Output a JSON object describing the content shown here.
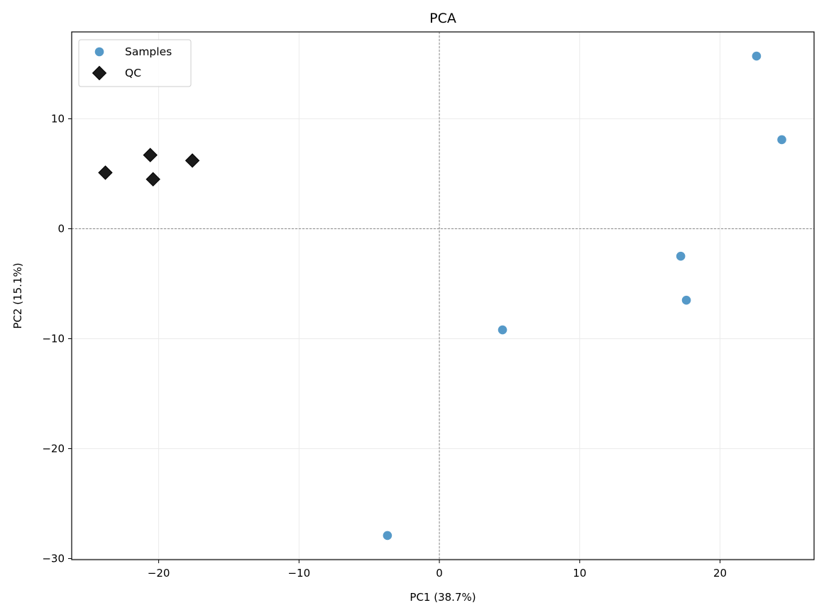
{
  "chart_data": {
    "type": "scatter",
    "title": "PCA",
    "xlabel": "PC1 (38.7%)",
    "ylabel": "PC2 (15.1%)",
    "xlim": [
      -26.2,
      26.7
    ],
    "ylim": [
      -30.1,
      17.9
    ],
    "xticks": [
      -20,
      -10,
      0,
      10,
      20
    ],
    "yticks": [
      -30,
      -20,
      -10,
      0,
      10
    ],
    "xtick_labels": [
      "−20",
      "−10",
      "0",
      "10",
      "20"
    ],
    "ytick_labels": [
      "−30",
      "−20",
      "−10",
      "0",
      "10"
    ],
    "grid": true,
    "zero_lines": true,
    "legend_position": "upper-left",
    "series": [
      {
        "name": "Samples",
        "marker": "circle",
        "color": "#5599c8",
        "points": [
          {
            "x": 22.6,
            "y": 15.7
          },
          {
            "x": 24.4,
            "y": 8.1
          },
          {
            "x": 17.2,
            "y": -2.5
          },
          {
            "x": 17.6,
            "y": -6.5
          },
          {
            "x": 4.5,
            "y": -9.2
          },
          {
            "x": -3.7,
            "y": -27.9
          }
        ]
      },
      {
        "name": "QC",
        "marker": "diamond",
        "color": "#1a1a1a",
        "points": [
          {
            "x": -23.8,
            "y": 5.1
          },
          {
            "x": -20.6,
            "y": 6.7
          },
          {
            "x": -20.4,
            "y": 4.5
          },
          {
            "x": -17.6,
            "y": 6.2
          }
        ]
      }
    ]
  }
}
